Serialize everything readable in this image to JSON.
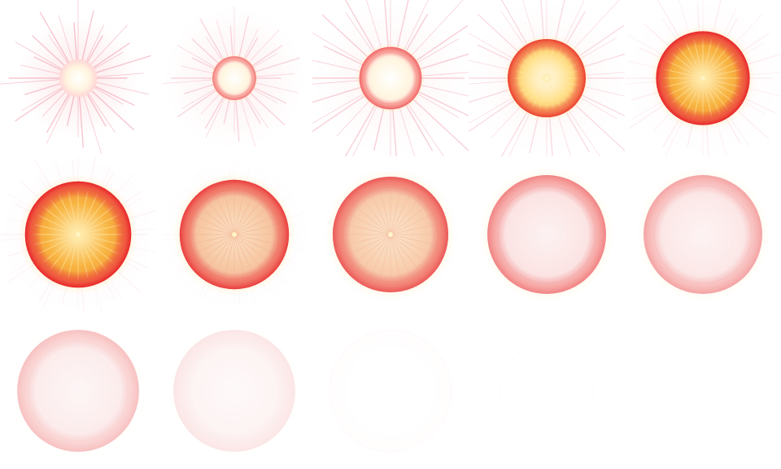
{
  "sheet": {
    "description_free": true,
    "columns": 5,
    "rows": 3,
    "frame_count": 14,
    "background": "#ffffff",
    "palette": {
      "rim_red": "#e8262a",
      "core_white": "#ffffff",
      "glow_yellow": "#ffe9a8",
      "core_orange": "#f7b23a",
      "haze_pink": "#f9d3d6"
    },
    "frames": [
      {
        "index": 1,
        "phase": "flash",
        "radius": 0.12,
        "rim_opacity": 0.0,
        "core": "white",
        "rays": 1.0,
        "haze": 0.55,
        "fade": 1.0
      },
      {
        "index": 2,
        "phase": "flash",
        "radius": 0.14,
        "rim_opacity": 0.55,
        "core": "white",
        "rays": 0.7,
        "haze": 0.35,
        "fade": 1.0
      },
      {
        "index": 3,
        "phase": "ignite",
        "radius": 0.2,
        "rim_opacity": 0.65,
        "core": "white",
        "rays": 0.85,
        "haze": 0.25,
        "fade": 1.0
      },
      {
        "index": 4,
        "phase": "ignite",
        "radius": 0.25,
        "rim_opacity": 0.8,
        "core": "yellow",
        "rays": 0.6,
        "haze": 0.25,
        "fade": 1.0
      },
      {
        "index": 5,
        "phase": "burst",
        "radius": 0.3,
        "rim_opacity": 1.0,
        "core": "orange",
        "rays": 0.3,
        "haze": 0.2,
        "fade": 1.0
      },
      {
        "index": 6,
        "phase": "burst",
        "radius": 0.34,
        "rim_opacity": 1.0,
        "core": "orange",
        "rays": 0.2,
        "haze": 0.2,
        "fade": 1.0
      },
      {
        "index": 7,
        "phase": "expand",
        "radius": 0.35,
        "rim_opacity": 0.9,
        "core": "peach",
        "rays": 0.1,
        "haze": 0.1,
        "fade": 0.95
      },
      {
        "index": 8,
        "phase": "expand",
        "radius": 0.37,
        "rim_opacity": 0.85,
        "core": "peach",
        "rays": 0.05,
        "haze": 0.05,
        "fade": 0.85
      },
      {
        "index": 9,
        "phase": "expand",
        "radius": 0.38,
        "rim_opacity": 0.7,
        "core": "pink",
        "rays": 0.0,
        "haze": 0.0,
        "fade": 0.75
      },
      {
        "index": 10,
        "phase": "dissipate",
        "radius": 0.38,
        "rim_opacity": 0.55,
        "core": "pink",
        "rays": 0.0,
        "haze": 0.0,
        "fade": 0.65
      },
      {
        "index": 11,
        "phase": "dissipate",
        "radius": 0.39,
        "rim_opacity": 0.45,
        "core": "pink",
        "rays": 0.0,
        "haze": 0.0,
        "fade": 0.5
      },
      {
        "index": 12,
        "phase": "dissipate",
        "radius": 0.39,
        "rim_opacity": 0.2,
        "core": "pink",
        "rays": 0.0,
        "haze": 0.0,
        "fade": 0.3
      },
      {
        "index": 13,
        "phase": "vanish",
        "radius": 0.39,
        "rim_opacity": 0.08,
        "core": "none",
        "rays": 0.0,
        "haze": 0.0,
        "fade": 0.12
      },
      {
        "index": 14,
        "phase": "vanish",
        "radius": 0.3,
        "rim_opacity": 0.03,
        "core": "none",
        "rays": 0.0,
        "haze": 0.0,
        "fade": 0.05
      }
    ]
  }
}
